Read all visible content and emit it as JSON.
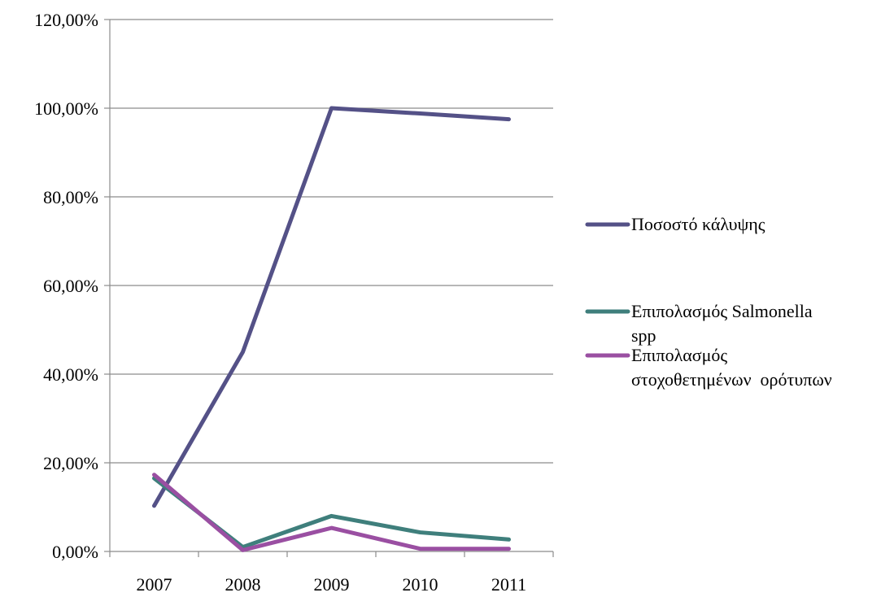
{
  "chart_data": {
    "type": "line",
    "title": "",
    "xlabel": "",
    "ylabel": "",
    "categories": [
      "2007",
      "2008",
      "2009",
      "2010",
      "2011"
    ],
    "y_ticks": [
      "0,00%",
      "20,00%",
      "40,00%",
      "60,00%",
      "80,00%",
      "100,00%",
      "120,00%"
    ],
    "ylim": [
      0,
      120
    ],
    "grid": true,
    "legend_position": "right",
    "series": [
      {
        "name": "Ποσοστό κάλυψης",
        "name_lines": [
          "Ποσοστό κάλυψης"
        ],
        "color": "#545187",
        "values": [
          10.3,
          45.0,
          100.0,
          98.8,
          97.5
        ]
      },
      {
        "name": "Επιπολασμός Salmonella spp",
        "name_lines": [
          "Επιπολασμός Salmonella",
          "spp"
        ],
        "color": "#3f7f7c",
        "values": [
          16.5,
          1.0,
          8.0,
          4.3,
          2.7
        ]
      },
      {
        "name": "Επιπολασμός στοχοθετημένων ορότυπων",
        "name_lines": [
          "Επιπολασμός",
          "στοχοθετημένων  ορότυπων"
        ],
        "color": "#9a4fa2",
        "values": [
          17.3,
          0.3,
          5.3,
          0.6,
          0.6
        ]
      }
    ]
  }
}
